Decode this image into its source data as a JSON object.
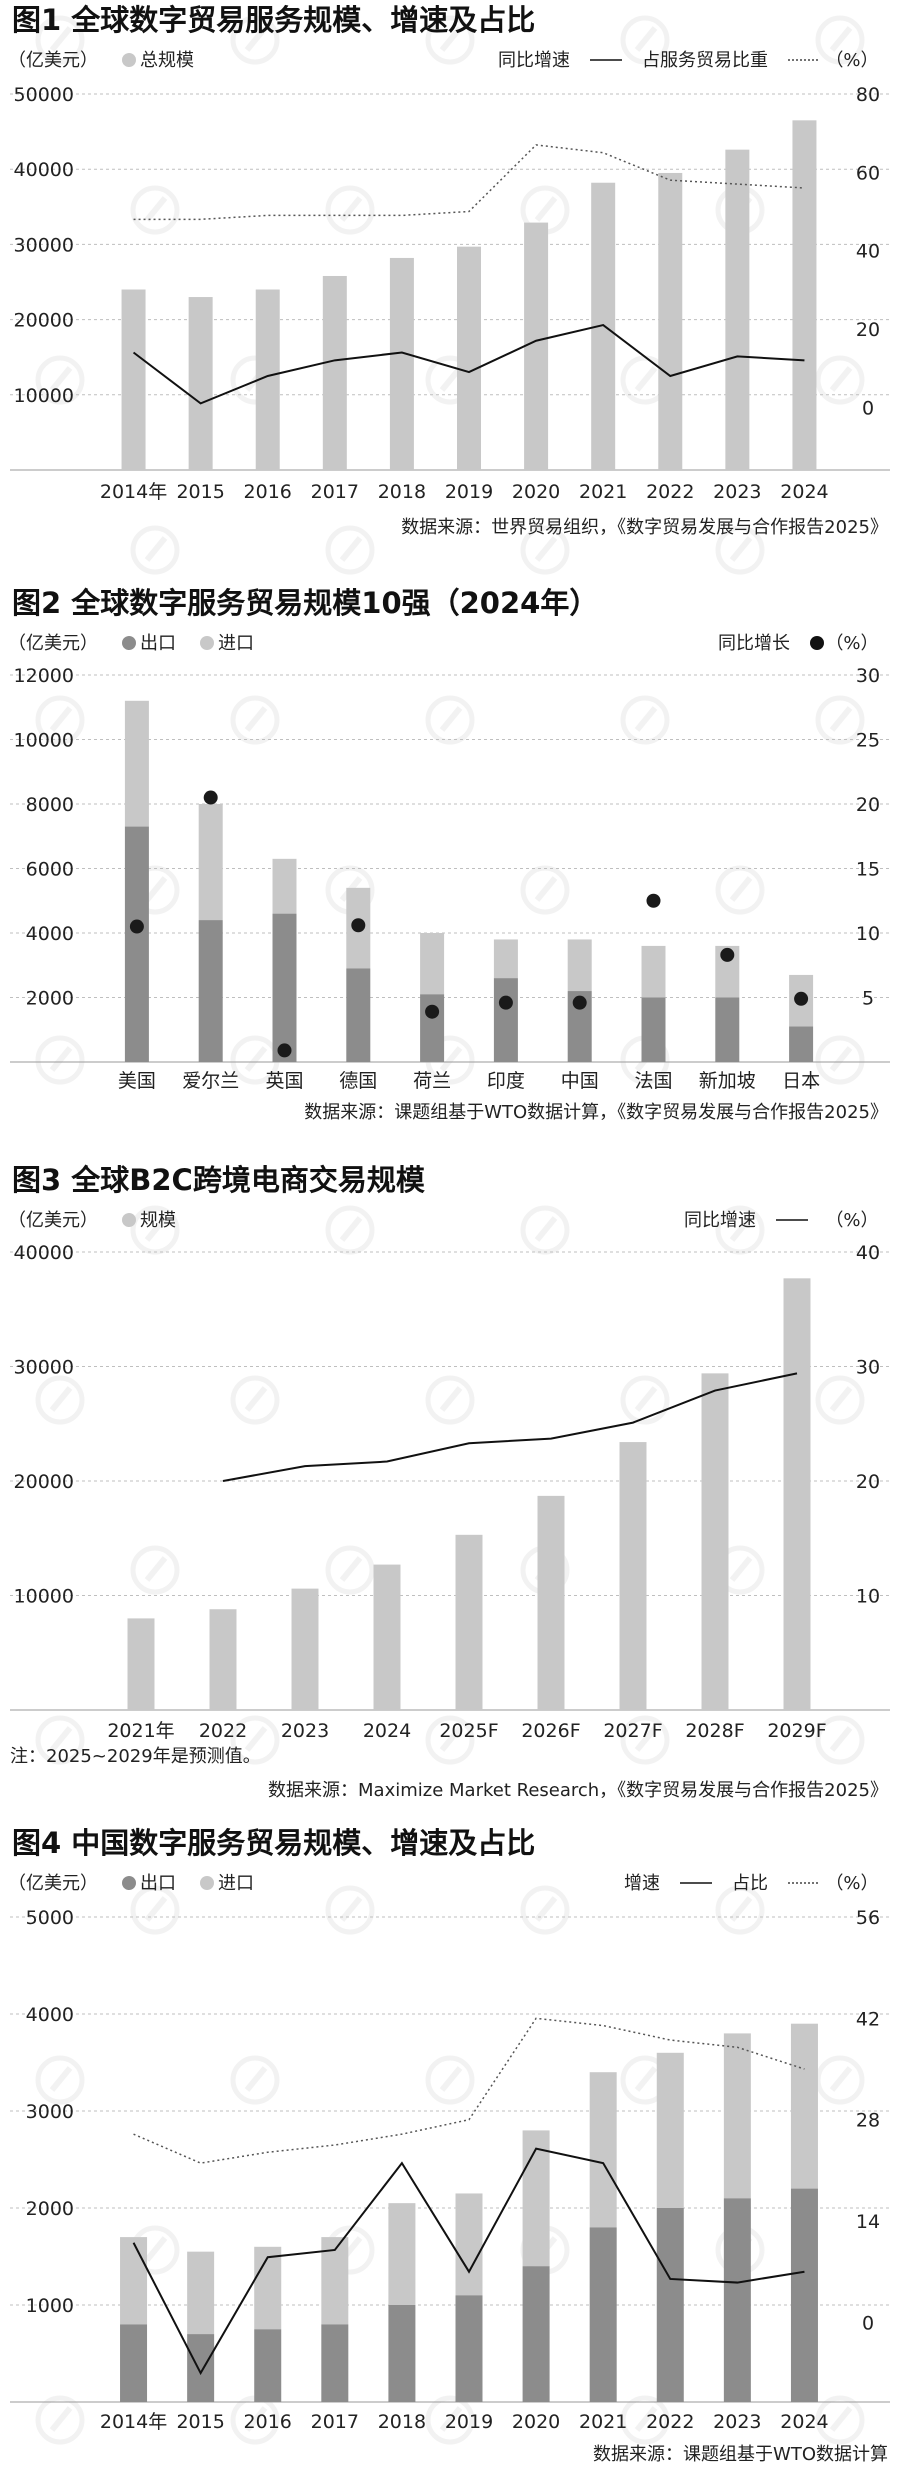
{
  "chart_data": [
    {
      "type": "bar",
      "title": "图1 全球数字贸易服务规模、增速及占比",
      "left_unit": "（亿美元）",
      "right_unit": "（%）",
      "legend": {
        "bar": "总规模",
        "line": "同比增速",
        "dotted": "占服务贸易比重"
      },
      "categories": [
        "2014年",
        "2015",
        "2016",
        "2017",
        "2018",
        "2019",
        "2020",
        "2021",
        "2022",
        "2023",
        "2024"
      ],
      "y_left": {
        "ticks": [
          10000,
          20000,
          30000,
          40000,
          50000
        ],
        "ylim": [
          0,
          50000
        ]
      },
      "y_right": {
        "ticks": [
          0,
          20,
          40,
          60,
          80
        ],
        "ylim": [
          -16,
          80
        ]
      },
      "series": [
        {
          "name": "总规模",
          "kind": "bar",
          "axis": "left",
          "values": [
            24000,
            23000,
            24000,
            25800,
            28200,
            29700,
            32900,
            38200,
            39500,
            42600,
            46500
          ]
        },
        {
          "name": "同比增速",
          "kind": "line",
          "axis": "right",
          "values": [
            14,
            1,
            8,
            12,
            14,
            9,
            17,
            21,
            8,
            13,
            12
          ]
        },
        {
          "name": "占服务贸易比重",
          "kind": "dotted",
          "axis": "right",
          "values": [
            48,
            48,
            49,
            49,
            49,
            50,
            67,
            65,
            58,
            57,
            56
          ]
        }
      ],
      "source": "数据来源：世界贸易组织，《数字贸易发展与合作报告2025》"
    },
    {
      "type": "bar",
      "title": "图2 全球数字服务贸易规模10强（2024年）",
      "left_unit": "（亿美元）",
      "right_unit": "（%）",
      "legend": {
        "export": "出口",
        "import": "进口",
        "dot": "同比增长"
      },
      "categories": [
        "美国",
        "爱尔兰",
        "英国",
        "德国",
        "荷兰",
        "印度",
        "中国",
        "法国",
        "新加坡",
        "日本"
      ],
      "y_left": {
        "ticks": [
          2000,
          4000,
          6000,
          8000,
          10000,
          12000
        ],
        "ylim": [
          0,
          12000
        ]
      },
      "y_right": {
        "ticks": [
          5,
          10,
          15,
          20,
          25,
          30
        ],
        "ylim": [
          0,
          30
        ]
      },
      "series": [
        {
          "name": "出口",
          "kind": "bar_stack_bottom",
          "axis": "left",
          "values": [
            7300,
            4400,
            4600,
            2900,
            2100,
            2600,
            2200,
            2000,
            2000,
            1100
          ]
        },
        {
          "name": "进口",
          "kind": "bar_stack_top",
          "axis": "left",
          "values": [
            3900,
            3600,
            1700,
            2500,
            1900,
            1200,
            1600,
            1600,
            1600,
            1600
          ]
        },
        {
          "name": "同比增长",
          "kind": "dot",
          "axis": "right",
          "values": [
            10.5,
            20.5,
            0.9,
            10.6,
            3.9,
            4.6,
            4.6,
            12.5,
            8.3,
            4.9
          ]
        }
      ],
      "source": "数据来源：课题组基于WTO数据计算，《数字贸易发展与合作报告2025》"
    },
    {
      "type": "bar",
      "title": "图3 全球B2C跨境电商交易规模",
      "left_unit": "（亿美元）",
      "right_unit": "（%）",
      "legend": {
        "bar": "规模",
        "line": "同比增速"
      },
      "categories": [
        "2021年",
        "2022",
        "2023",
        "2024",
        "2025F",
        "2026F",
        "2027F",
        "2028F",
        "2029F"
      ],
      "y_left": {
        "ticks": [
          10000,
          20000,
          30000,
          40000
        ],
        "ylim": [
          0,
          40000
        ]
      },
      "y_right": {
        "ticks": [
          10,
          20,
          30,
          40
        ],
        "ylim": [
          0,
          40
        ]
      },
      "series": [
        {
          "name": "规模",
          "kind": "bar",
          "axis": "left",
          "values": [
            8000,
            8800,
            10600,
            12700,
            15300,
            18700,
            23400,
            29400,
            37700
          ]
        },
        {
          "name": "同比增速",
          "kind": "line",
          "axis": "right",
          "start": 1,
          "values": [
            null,
            20,
            21.3,
            21.7,
            23.3,
            23.7,
            25.1,
            27.9,
            29.4
          ]
        }
      ],
      "note": "注：2025~2029年是预测值。",
      "source": "数据来源：Maximize Market Research，《数字贸易发展与合作报告2025》"
    },
    {
      "type": "bar",
      "title": "图4 中国数字服务贸易规模、增速及占比",
      "left_unit": "（亿美元）",
      "right_unit": "（%）",
      "legend": {
        "export": "出口",
        "import": "进口",
        "line": "增速",
        "dotted": "占比"
      },
      "categories": [
        "2014年",
        "2015",
        "2016",
        "2017",
        "2018",
        "2019",
        "2020",
        "2021",
        "2022",
        "2023",
        "2024"
      ],
      "y_left": {
        "ticks": [
          1000,
          2000,
          3000,
          4000,
          5000
        ],
        "ylim": [
          0,
          5000
        ]
      },
      "y_right": {
        "ticks": [
          0,
          14,
          28,
          42,
          56
        ],
        "ylim": [
          -11,
          56
        ]
      },
      "series": [
        {
          "name": "出口",
          "kind": "bar_stack_bottom",
          "axis": "left",
          "values": [
            800,
            700,
            750,
            800,
            1000,
            1100,
            1400,
            1800,
            2000,
            2100,
            2200
          ]
        },
        {
          "name": "进口",
          "kind": "bar_stack_top",
          "axis": "left",
          "values": [
            900,
            850,
            850,
            900,
            1050,
            1050,
            1400,
            1600,
            1600,
            1700,
            1700
          ]
        },
        {
          "name": "增速",
          "kind": "line",
          "axis": "right",
          "values": [
            11,
            -7,
            9,
            10,
            22,
            7,
            24,
            22,
            6,
            5.5,
            7
          ]
        },
        {
          "name": "占比",
          "kind": "dotted",
          "axis": "right",
          "values": [
            26,
            22,
            23.5,
            24.5,
            26,
            28,
            42,
            41,
            39,
            38,
            35
          ]
        }
      ],
      "source": "数据来源：课题组基于WTO数据计算"
    }
  ]
}
